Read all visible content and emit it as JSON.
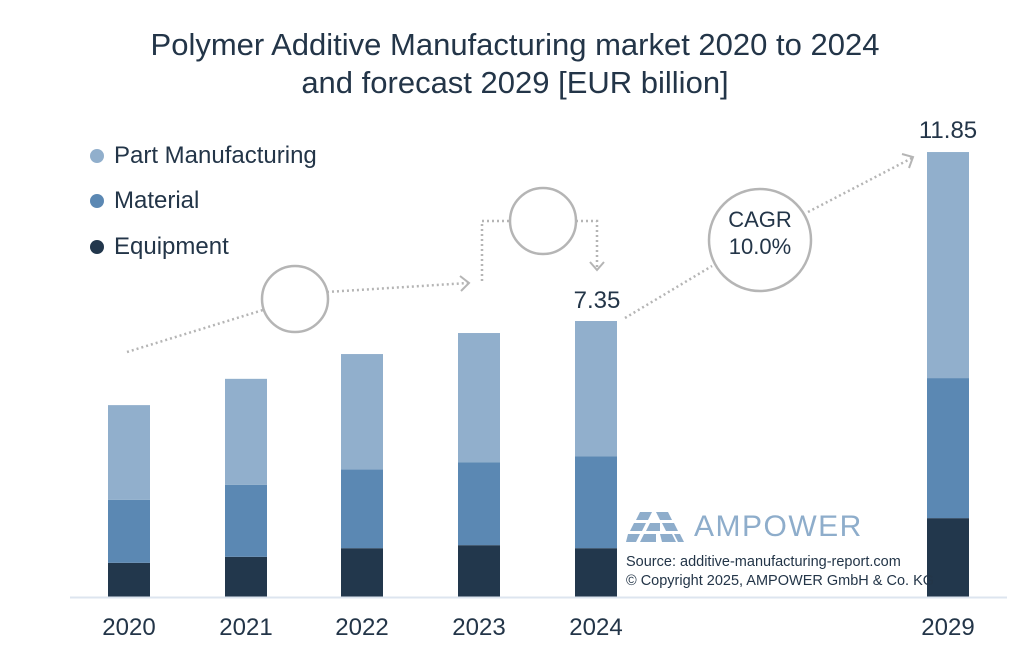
{
  "title": {
    "line1": "Polymer Additive Manufacturing market 2020 to 2024",
    "line2": "and forecast 2029 [EUR billion]"
  },
  "legend": [
    {
      "label": "Part Manufacturing",
      "color": "#91afcc"
    },
    {
      "label": "Material",
      "color": "#5b88b3"
    },
    {
      "label": "Equipment",
      "color": "#22374c"
    }
  ],
  "annotations": {
    "total_2024": "7.35",
    "total_2029": "11.85",
    "cagr_line1": "CAGR",
    "cagr_line2": "10.0%"
  },
  "branding": {
    "name": "AMPOWER",
    "source": "Source: additive-manufacturing-report.com",
    "copyright": "© Copyright 2025, AMPOWER GmbH & Co. KG"
  },
  "colors": {
    "part_manufacturing": "#91afcc",
    "material": "#5b88b3",
    "equipment": "#22374c",
    "axis": "#dde5ef",
    "arrow": "#b5b5b5",
    "text": "#233548"
  },
  "chart_data": {
    "type": "bar",
    "stacked": true,
    "title": "Polymer Additive Manufacturing market 2020 to 2024 and forecast 2029 [EUR billion]",
    "xlabel": "",
    "ylabel": "EUR billion",
    "categories": [
      "2020",
      "2021",
      "2022",
      "2023",
      "2024",
      "2029"
    ],
    "series": [
      {
        "name": "Equipment",
        "values": [
          0.91,
          1.07,
          1.3,
          1.38,
          1.3,
          2.1
        ]
      },
      {
        "name": "Material",
        "values": [
          1.68,
          1.92,
          2.1,
          2.21,
          2.45,
          3.73
        ]
      },
      {
        "name": "Part Manufacturing",
        "values": [
          2.52,
          2.82,
          3.07,
          3.44,
          3.6,
          6.02
        ]
      }
    ],
    "totals": [
      5.11,
      5.81,
      6.47,
      7.03,
      7.35,
      11.85
    ],
    "data_labels": {
      "2024": "7.35",
      "2029": "11.85"
    },
    "annotations": [
      "CAGR 10.0% (2024–2029)"
    ],
    "legend_position": "top-left",
    "grid": false,
    "ylim": [
      0,
      12
    ]
  }
}
